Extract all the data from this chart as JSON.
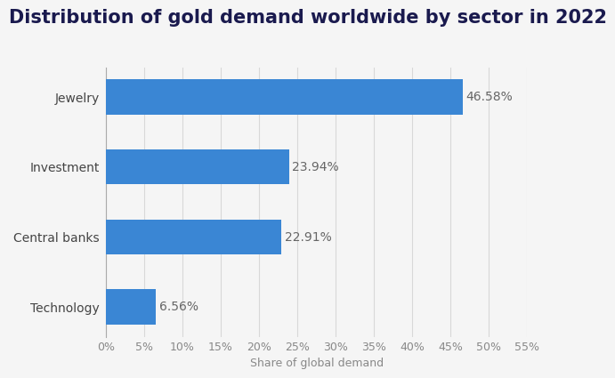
{
  "title": "Distribution of gold demand worldwide by sector in 2022",
  "categories": [
    "Technology",
    "Central banks",
    "Investment",
    "Jewelry"
  ],
  "values": [
    6.56,
    22.91,
    23.94,
    46.58
  ],
  "labels": [
    "6.56%",
    "22.91%",
    "23.94%",
    "46.58%"
  ],
  "bar_color": "#3a86d4",
  "xlabel": "Share of global demand",
  "xlim": [
    0,
    55
  ],
  "xticks": [
    0,
    5,
    10,
    15,
    20,
    25,
    30,
    35,
    40,
    45,
    50,
    55
  ],
  "fig_bg_color": "#f5f5f5",
  "plot_bg_color": "#f5f5f5",
  "title_color": "#1a1a4e",
  "label_color": "#666666",
  "ytick_color": "#444444",
  "xtick_color": "#888888",
  "grid_color": "#d8d8d8",
  "title_fontsize": 15,
  "label_fontsize": 10,
  "tick_fontsize": 9,
  "xlabel_fontsize": 9,
  "bar_height": 0.5
}
